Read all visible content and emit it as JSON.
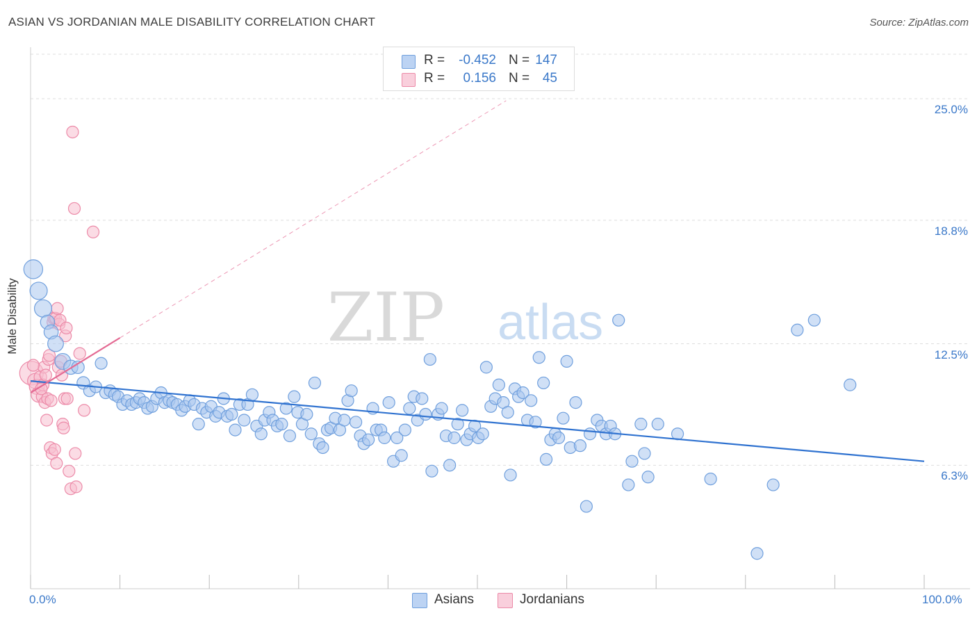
{
  "title": "ASIAN VS JORDANIAN MALE DISABILITY CORRELATION CHART",
  "source": "Source: ZipAtlas.com",
  "watermark": {
    "zip": "ZIP",
    "atlas": "atlas"
  },
  "colors": {
    "asian_fill": "#a9c6ef",
    "asian_stroke": "#6f9fdd",
    "asian_line": "#2f72d0",
    "jordan_fill": "#f7bfd0",
    "jordan_stroke": "#ec8aa8",
    "jordan_line": "#e46a93",
    "axis_text": "#3a78c9",
    "grid": "#dddddd"
  },
  "legend": {
    "rows": [
      {
        "r_label": "R = ",
        "r_value": "-0.452",
        "n_label": "N = ",
        "n_value": "147"
      },
      {
        "r_label": "R = ",
        "r_value": "0.156",
        "n_label": "N = ",
        "n_value": "45"
      }
    ],
    "bottom": [
      "Asians",
      "Jordanians"
    ]
  },
  "chart_data": {
    "type": "scatter",
    "ylabel": "Male Disability",
    "xlabel": "",
    "xlim": [
      0,
      100
    ],
    "ylim": [
      0,
      27.2
    ],
    "x_tick_labels": [
      "0.0%",
      "100.0%"
    ],
    "y_ticks": [
      6.3,
      12.5,
      18.8,
      25.0
    ],
    "y_tick_labels": [
      "6.3%",
      "12.5%",
      "18.8%",
      "25.0%"
    ],
    "grid": "horizontal dashed",
    "legend_position": "top-center",
    "series": [
      {
        "name": "Asians",
        "r": -0.452,
        "n": 147,
        "trend": {
          "x0": 0,
          "y0": 10.6,
          "x1": 100,
          "y1": 6.5
        },
        "points": [
          [
            0.3,
            16.3,
            2.4
          ],
          [
            0.9,
            15.2,
            2.2
          ],
          [
            1.4,
            14.3,
            2.2
          ],
          [
            1.9,
            13.6,
            1.8
          ],
          [
            2.3,
            13.1,
            1.8
          ],
          [
            2.8,
            12.5,
            2.0
          ],
          [
            3.6,
            11.6,
            2.0
          ],
          [
            4.5,
            11.3,
            1.8
          ],
          [
            5.3,
            11.3,
            1.6
          ],
          [
            5.9,
            10.5,
            1.6
          ],
          [
            6.6,
            10.1,
            1.5
          ],
          [
            7.3,
            10.3,
            1.5
          ],
          [
            7.9,
            11.5,
            1.5
          ],
          [
            8.4,
            10.0,
            1.5
          ],
          [
            8.9,
            10.1,
            1.5
          ],
          [
            9.4,
            9.9,
            1.5
          ],
          [
            9.8,
            9.8,
            1.5
          ],
          [
            10.3,
            9.4,
            1.5
          ],
          [
            10.8,
            9.6,
            1.5
          ],
          [
            11.3,
            9.4,
            1.5
          ],
          [
            11.8,
            9.5,
            1.5
          ],
          [
            12.2,
            9.7,
            1.5
          ],
          [
            12.7,
            9.5,
            1.5
          ],
          [
            13.1,
            9.2,
            1.5
          ],
          [
            13.6,
            9.3,
            1.5
          ],
          [
            14.1,
            9.7,
            1.5
          ],
          [
            14.6,
            10.0,
            1.5
          ],
          [
            15.0,
            9.5,
            1.5
          ],
          [
            15.5,
            9.6,
            1.5
          ],
          [
            15.9,
            9.5,
            1.5
          ],
          [
            16.4,
            9.4,
            1.5
          ],
          [
            16.9,
            9.1,
            1.5
          ],
          [
            17.3,
            9.3,
            1.5
          ],
          [
            17.8,
            9.6,
            1.5
          ],
          [
            18.3,
            9.4,
            1.5
          ],
          [
            18.8,
            8.4,
            1.5
          ],
          [
            19.2,
            9.2,
            1.5
          ],
          [
            19.7,
            9.0,
            1.5
          ],
          [
            20.2,
            9.3,
            1.5
          ],
          [
            20.7,
            8.8,
            1.5
          ],
          [
            21.1,
            9.0,
            1.5
          ],
          [
            21.6,
            9.7,
            1.5
          ],
          [
            22.0,
            8.8,
            1.5
          ],
          [
            22.5,
            8.9,
            1.5
          ],
          [
            22.9,
            8.1,
            1.5
          ],
          [
            23.4,
            9.4,
            1.5
          ],
          [
            23.9,
            8.6,
            1.5
          ],
          [
            24.3,
            9.4,
            1.5
          ],
          [
            24.8,
            9.9,
            1.5
          ],
          [
            25.3,
            8.3,
            1.5
          ],
          [
            25.8,
            7.9,
            1.5
          ],
          [
            26.2,
            8.6,
            1.5
          ],
          [
            26.7,
            9.0,
            1.5
          ],
          [
            27.1,
            8.6,
            1.5
          ],
          [
            27.6,
            8.3,
            1.5
          ],
          [
            28.1,
            8.4,
            1.5
          ],
          [
            28.6,
            9.2,
            1.5
          ],
          [
            29.0,
            7.8,
            1.5
          ],
          [
            29.5,
            9.8,
            1.5
          ],
          [
            29.9,
            9.0,
            1.5
          ],
          [
            30.4,
            8.4,
            1.5
          ],
          [
            30.9,
            8.9,
            1.5
          ],
          [
            31.4,
            7.9,
            1.5
          ],
          [
            31.8,
            10.5,
            1.5
          ],
          [
            32.3,
            7.4,
            1.5
          ],
          [
            32.7,
            7.2,
            1.5
          ],
          [
            33.2,
            8.1,
            1.5
          ],
          [
            33.6,
            8.2,
            1.5
          ],
          [
            34.1,
            8.7,
            1.5
          ],
          [
            34.6,
            8.1,
            1.5
          ],
          [
            35.1,
            8.6,
            1.5
          ],
          [
            35.5,
            9.6,
            1.5
          ],
          [
            35.9,
            10.1,
            1.5
          ],
          [
            36.4,
            8.5,
            1.5
          ],
          [
            36.9,
            7.8,
            1.5
          ],
          [
            37.3,
            7.4,
            1.5
          ],
          [
            37.8,
            7.6,
            1.5
          ],
          [
            38.3,
            9.2,
            1.5
          ],
          [
            38.7,
            8.1,
            1.5
          ],
          [
            39.2,
            8.1,
            1.5
          ],
          [
            39.6,
            7.7,
            1.5
          ],
          [
            40.1,
            9.5,
            1.5
          ],
          [
            40.6,
            6.5,
            1.5
          ],
          [
            41.0,
            7.7,
            1.5
          ],
          [
            41.5,
            6.8,
            1.5
          ],
          [
            41.9,
            8.1,
            1.5
          ],
          [
            42.4,
            9.2,
            1.5
          ],
          [
            42.9,
            9.8,
            1.5
          ],
          [
            43.3,
            8.6,
            1.5
          ],
          [
            43.8,
            9.7,
            1.5
          ],
          [
            44.2,
            8.9,
            1.5
          ],
          [
            44.7,
            11.7,
            1.5
          ],
          [
            44.9,
            6.0,
            1.5
          ],
          [
            45.6,
            8.9,
            1.5
          ],
          [
            46.0,
            9.2,
            1.5
          ],
          [
            46.5,
            7.8,
            1.5
          ],
          [
            46.9,
            6.3,
            1.5
          ],
          [
            47.4,
            7.7,
            1.5
          ],
          [
            47.8,
            8.4,
            1.5
          ],
          [
            48.3,
            9.1,
            1.5
          ],
          [
            48.8,
            7.6,
            1.5
          ],
          [
            49.2,
            7.9,
            1.5
          ],
          [
            49.7,
            8.3,
            1.5
          ],
          [
            50.1,
            7.7,
            1.5
          ],
          [
            50.6,
            7.9,
            1.5
          ],
          [
            51.0,
            11.3,
            1.5
          ],
          [
            51.5,
            9.3,
            1.5
          ],
          [
            52.0,
            9.7,
            1.5
          ],
          [
            52.4,
            10.4,
            1.5
          ],
          [
            52.9,
            9.5,
            1.5
          ],
          [
            53.4,
            9.0,
            1.5
          ],
          [
            53.7,
            5.8,
            1.5
          ],
          [
            54.2,
            10.2,
            1.5
          ],
          [
            54.6,
            9.8,
            1.5
          ],
          [
            55.1,
            10.0,
            1.5
          ],
          [
            55.6,
            8.6,
            1.5
          ],
          [
            56.0,
            9.6,
            1.5
          ],
          [
            56.5,
            8.5,
            1.5
          ],
          [
            56.9,
            11.8,
            1.5
          ],
          [
            57.4,
            10.5,
            1.5
          ],
          [
            57.7,
            6.6,
            1.5
          ],
          [
            58.2,
            7.6,
            1.5
          ],
          [
            58.7,
            7.9,
            1.5
          ],
          [
            59.1,
            7.7,
            1.5
          ],
          [
            59.6,
            8.7,
            1.5
          ],
          [
            60.0,
            11.6,
            1.5
          ],
          [
            60.4,
            7.2,
            1.5
          ],
          [
            61.0,
            9.5,
            1.5
          ],
          [
            61.5,
            7.3,
            1.5
          ],
          [
            62.2,
            4.2,
            1.5
          ],
          [
            62.6,
            7.9,
            1.5
          ],
          [
            63.4,
            8.6,
            1.5
          ],
          [
            63.9,
            8.3,
            1.5
          ],
          [
            64.4,
            7.9,
            1.5
          ],
          [
            64.9,
            8.3,
            1.5
          ],
          [
            65.4,
            7.9,
            1.5
          ],
          [
            65.8,
            13.7,
            1.5
          ],
          [
            67.3,
            6.5,
            1.5
          ],
          [
            68.3,
            8.4,
            1.5
          ],
          [
            68.7,
            6.9,
            1.5
          ],
          [
            69.1,
            5.7,
            1.5
          ],
          [
            70.2,
            8.4,
            1.5
          ],
          [
            72.4,
            7.9,
            1.5
          ],
          [
            76.1,
            5.6,
            1.5
          ],
          [
            81.3,
            1.8,
            1.5
          ],
          [
            83.1,
            5.3,
            1.5
          ],
          [
            85.8,
            13.2,
            1.5
          ],
          [
            87.7,
            13.7,
            1.5
          ],
          [
            91.7,
            10.4,
            1.5
          ],
          [
            66.9,
            5.3,
            1.5
          ]
        ]
      },
      {
        "name": "Jordanians",
        "r": 0.156,
        "n": 45,
        "trend": {
          "x0": 0,
          "y0": 10.0,
          "x1": 10,
          "y1": 12.8
        },
        "points": [
          [
            0.1,
            11.0,
            3.0
          ],
          [
            0.5,
            10.6,
            1.9
          ],
          [
            0.7,
            10.3,
            1.9
          ],
          [
            0.9,
            9.9,
            1.9
          ],
          [
            1.1,
            10.8,
            1.6
          ],
          [
            1.3,
            9.8,
            1.5
          ],
          [
            1.4,
            10.4,
            1.5
          ],
          [
            1.5,
            11.3,
            1.5
          ],
          [
            1.6,
            9.5,
            1.5
          ],
          [
            1.7,
            10.9,
            1.5
          ],
          [
            1.8,
            8.6,
            1.5
          ],
          [
            1.9,
            9.7,
            1.5
          ],
          [
            2.0,
            11.7,
            1.5
          ],
          [
            2.1,
            11.9,
            1.5
          ],
          [
            2.2,
            7.2,
            1.5
          ],
          [
            2.3,
            9.6,
            1.5
          ],
          [
            2.4,
            6.9,
            1.5
          ],
          [
            2.5,
            13.6,
            1.5
          ],
          [
            2.6,
            13.8,
            1.5
          ],
          [
            2.7,
            7.1,
            1.5
          ],
          [
            2.8,
            13.8,
            1.5
          ],
          [
            2.9,
            6.4,
            1.5
          ],
          [
            3.0,
            14.3,
            1.5
          ],
          [
            3.1,
            11.3,
            1.5
          ],
          [
            3.2,
            13.5,
            1.5
          ],
          [
            3.3,
            13.7,
            1.5
          ],
          [
            3.4,
            11.6,
            1.5
          ],
          [
            3.5,
            10.9,
            1.5
          ],
          [
            3.6,
            8.4,
            1.5
          ],
          [
            3.7,
            8.2,
            1.5
          ],
          [
            3.8,
            9.7,
            1.5
          ],
          [
            3.9,
            12.9,
            1.5
          ],
          [
            4.0,
            13.3,
            1.5
          ],
          [
            4.1,
            9.7,
            1.5
          ],
          [
            4.3,
            6.0,
            1.5
          ],
          [
            4.5,
            5.1,
            1.5
          ],
          [
            4.7,
            23.3,
            1.5
          ],
          [
            4.9,
            19.4,
            1.5
          ],
          [
            5.0,
            6.9,
            1.5
          ],
          [
            5.1,
            5.2,
            1.5
          ],
          [
            5.5,
            12.0,
            1.5
          ],
          [
            6.0,
            9.1,
            1.5
          ],
          [
            7.0,
            18.2,
            1.5
          ],
          [
            1.2,
            10.2,
            1.5
          ],
          [
            0.3,
            11.4,
            1.5
          ]
        ]
      }
    ]
  }
}
